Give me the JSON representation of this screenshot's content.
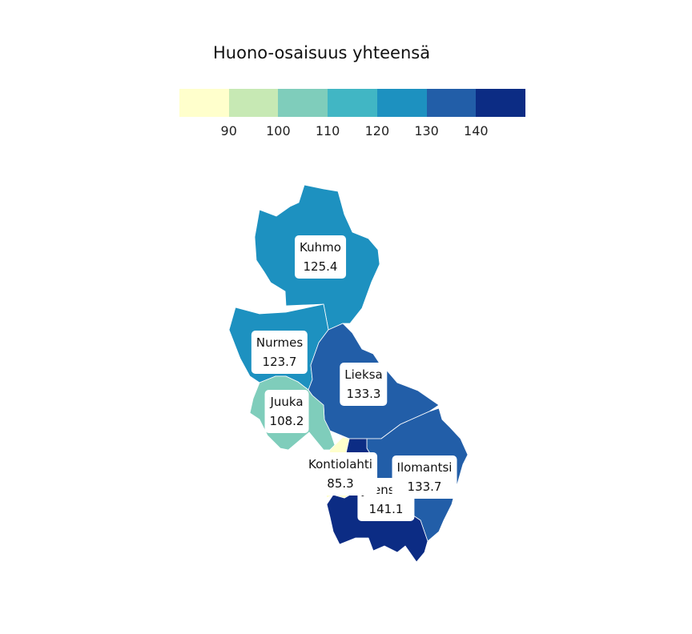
{
  "legend": {
    "title": "Huono-osaisuus yhteensä",
    "colors": [
      "#ffffcc",
      "#c7e9b4",
      "#7fcdbb",
      "#41b6c4",
      "#1d91c0",
      "#225ea8",
      "#0c2c84"
    ],
    "ticks": [
      "90",
      "100",
      "110",
      "120",
      "130",
      "140"
    ]
  },
  "regions": [
    {
      "id": "kuhmo",
      "name": "Kuhmo",
      "value": "125.4",
      "color": "#1d91c0"
    },
    {
      "id": "nurmes",
      "name": "Nurmes",
      "value": "123.7",
      "color": "#1d91c0"
    },
    {
      "id": "lieksa",
      "name": "Lieksa",
      "value": "133.3",
      "color": "#225ea8"
    },
    {
      "id": "juuka",
      "name": "Juuka",
      "value": "108.2",
      "color": "#7fcdbb"
    },
    {
      "id": "ilomantsi",
      "name": "Ilomantsi",
      "value": "133.7",
      "color": "#225ea8"
    },
    {
      "id": "joensuu",
      "name": "Joensuu",
      "value": "141.1",
      "color": "#0c2c84"
    },
    {
      "id": "kontiolahti",
      "name": "Kontiolahti",
      "value": "85.3",
      "color": "#ffffcc"
    }
  ]
}
